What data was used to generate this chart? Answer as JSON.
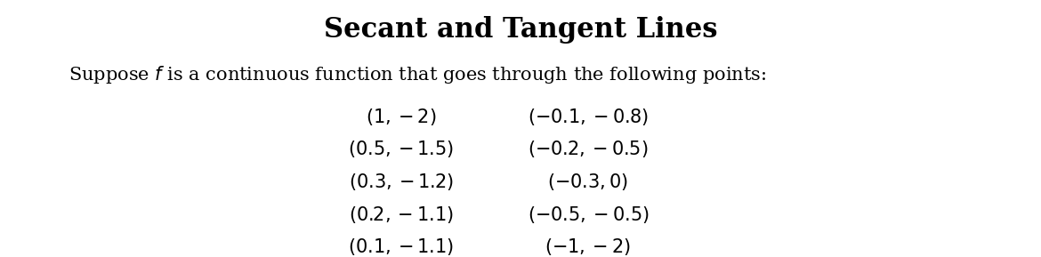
{
  "title": "Secant and Tangent Lines",
  "subtitle": "Suppose $f$ is a continuous function that goes through the following points:",
  "col1_points": [
    "(1, -2)",
    "(0.5, -1.5)",
    "(0.3, -1.2)",
    "(0.2, -1.1)",
    "(0.1, -1.1)"
  ],
  "col2_points": [
    "(-0.1, -0.8)",
    "(-0.2, -0.5)",
    "(-0.3, 0)",
    "(-0.5, -0.5)",
    "(-1, -2)"
  ],
  "background_color": "#ffffff",
  "text_color": "#000000",
  "title_fontsize": 22,
  "body_fontsize": 15,
  "points_fontsize": 15
}
